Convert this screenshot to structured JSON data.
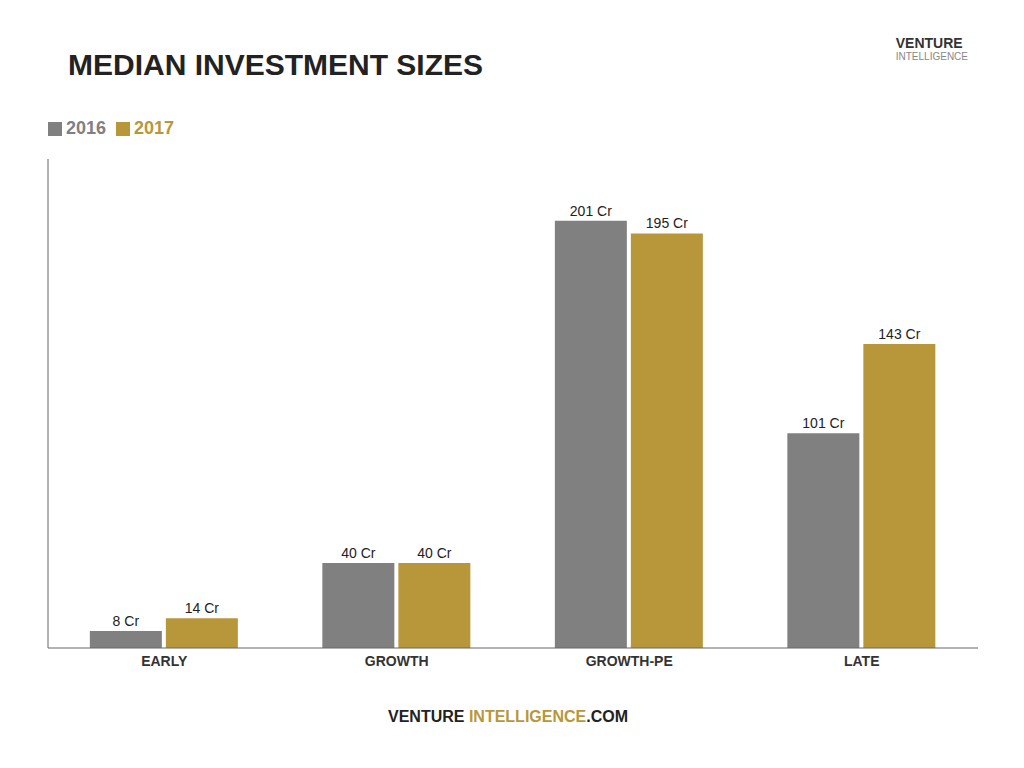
{
  "chart_data": {
    "type": "bar",
    "title": "MEDIAN INVESTMENT SIZES",
    "categories": [
      "EARLY",
      "GROWTH",
      "GROWTH-PE",
      "LATE"
    ],
    "series": [
      {
        "name": "2016",
        "color": "#808080",
        "values": [
          8,
          40,
          201,
          101
        ],
        "value_labels": [
          "8 Cr",
          "40 Cr",
          "201 Cr",
          "101 Cr"
        ]
      },
      {
        "name": "2017",
        "color": "#B8973A",
        "values": [
          14,
          40,
          195,
          143
        ],
        "value_labels": [
          "14 Cr",
          "40 Cr",
          "195 Cr",
          "143 Cr"
        ]
      }
    ],
    "ylim": [
      0,
      230
    ],
    "grid": false,
    "legend": "upper left",
    "data_labels": true,
    "tick_labels": "x",
    "annotations": [
      "VENTURE",
      "INTELLIGENCE",
      ".COM",
      "VENTURE",
      "INTELLIGENCE"
    ]
  }
}
